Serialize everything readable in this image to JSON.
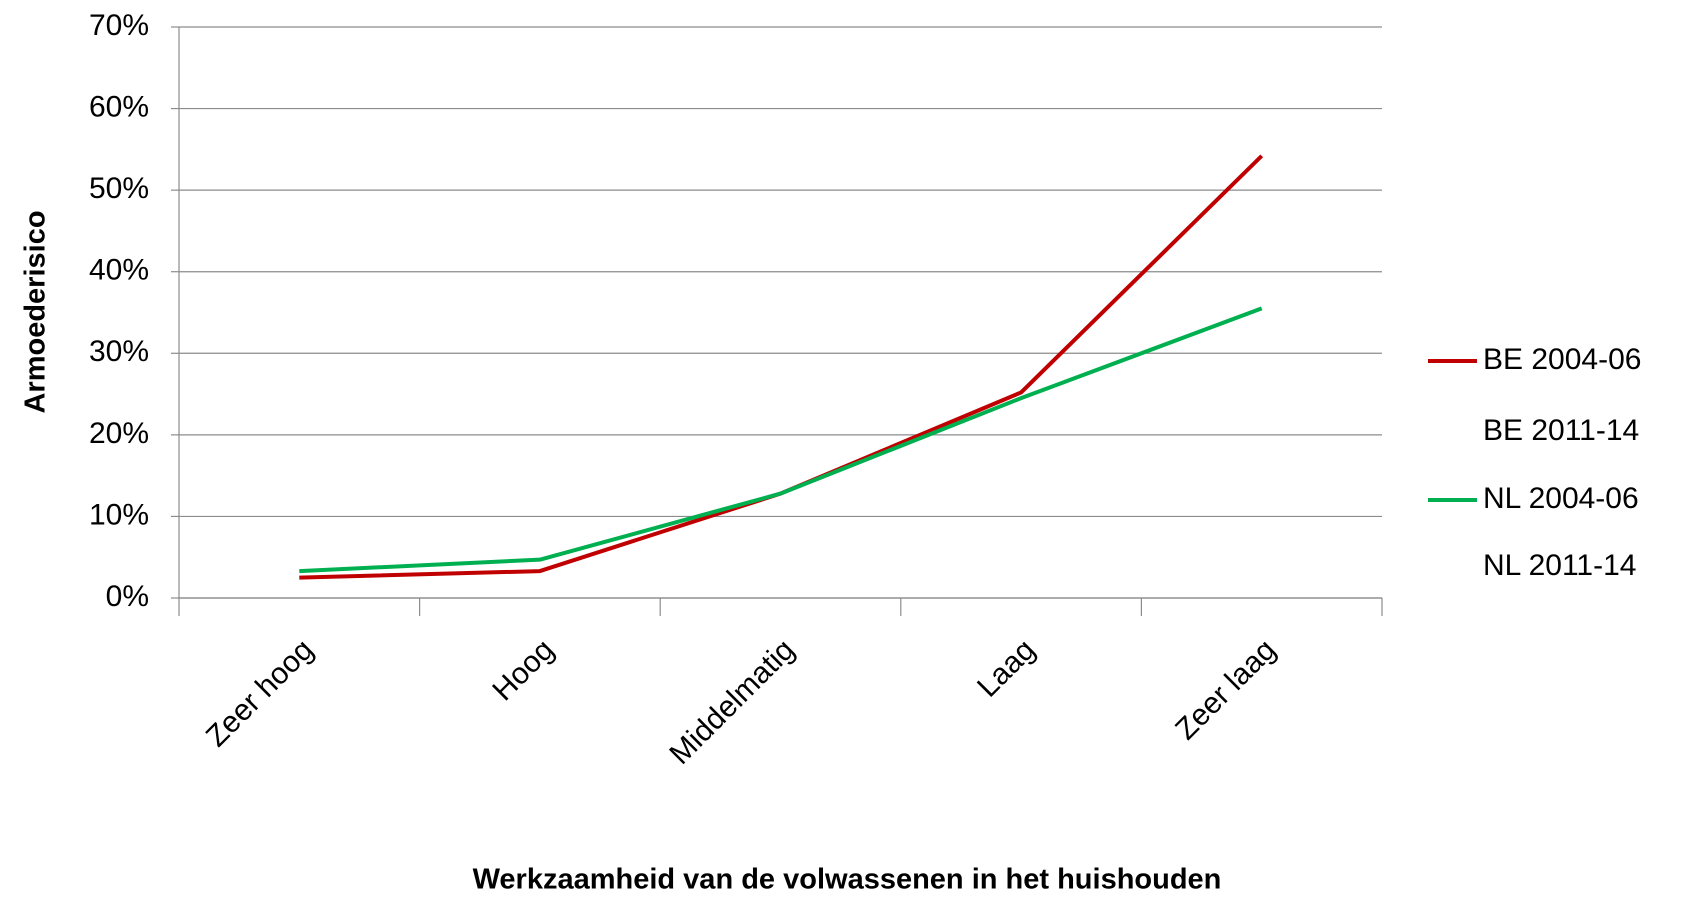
{
  "chart_data": {
    "type": "line",
    "x_label": "Werkzaamheid van de volwassenen in het huishouden",
    "y_label": "Armoederisico",
    "categories": [
      "Zeer hoog",
      "Hoog",
      "Middelmatig",
      "Laag",
      "Zeer laag"
    ],
    "series": [
      {
        "name": "BE 2004-06",
        "color": "#c00000",
        "values": [
          2.5,
          3.3,
          12.8,
          25.2,
          54.2
        ]
      },
      {
        "name": "BE 2011-14",
        "color": "none",
        "values": [
          null,
          null,
          null,
          null,
          null
        ]
      },
      {
        "name": "NL 2004-06",
        "color": "#00b050",
        "values": [
          3.3,
          4.7,
          12.8,
          24.5,
          35.5
        ]
      },
      {
        "name": "NL 2011-14",
        "color": "none",
        "values": [
          null,
          null,
          null,
          null,
          null
        ]
      }
    ],
    "ylim": [
      0,
      70
    ],
    "yticks": [
      {
        "value": 0,
        "label": "0%"
      },
      {
        "value": 10,
        "label": "10%"
      },
      {
        "value": 20,
        "label": "20%"
      },
      {
        "value": 30,
        "label": "30%"
      },
      {
        "value": 40,
        "label": "40%"
      },
      {
        "value": 50,
        "label": "50%"
      },
      {
        "value": 60,
        "label": "60%"
      },
      {
        "value": 70,
        "label": "70%"
      }
    ],
    "grid": true,
    "legend": "right"
  }
}
